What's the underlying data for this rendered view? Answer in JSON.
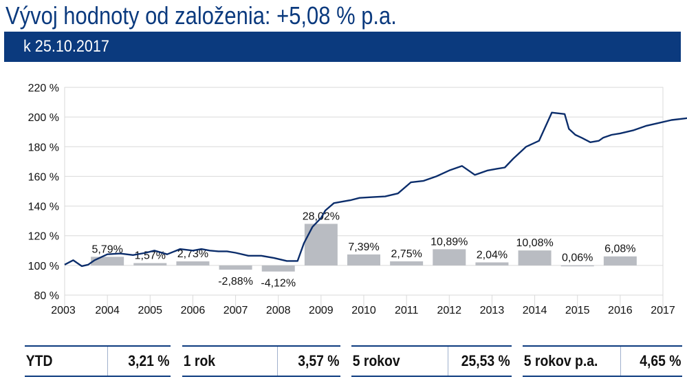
{
  "title": "Vývoj hodnoty od založenia: +5,08 % p.a.",
  "date_label": "k 25.10.2017",
  "colors": {
    "brand": "#0b3a7e",
    "bar": "#b9bcc2",
    "grid": "#d9d9d9",
    "line": "#0b2d6b"
  },
  "chart_data": [
    {
      "type": "line",
      "title": "",
      "ylim": [
        80,
        220
      ],
      "yticks": [
        "220 %",
        "200 %",
        "180 %",
        "160 %",
        "140 %",
        "120 %",
        "100 %",
        "80 %"
      ],
      "x_labels": [
        "2003",
        "2004",
        "2005",
        "2006",
        "2007",
        "2008",
        "2009",
        "2010",
        "2011",
        "2012",
        "2013",
        "2014",
        "2015",
        "2016",
        "2017"
      ],
      "grid": true,
      "series": [
        {
          "x": [
            2003.0,
            2003.2,
            2003.4,
            2003.55,
            2003.7,
            2004.0,
            2004.3,
            2004.6,
            2004.9,
            2005.1,
            2005.4,
            2005.7,
            2006.0,
            2006.2,
            2006.4,
            2006.6,
            2006.8,
            2007.0,
            2007.3,
            2007.6,
            2007.9,
            2008.2,
            2008.45,
            2008.6,
            2008.8,
            2009.0,
            2009.1,
            2009.3,
            2009.5,
            2009.7,
            2009.9,
            2010.2,
            2010.5,
            2010.8,
            2011.1,
            2011.4,
            2011.7,
            2012.0,
            2012.3,
            2012.6,
            2012.9,
            2013.1,
            2013.3,
            2013.5,
            2013.8,
            2014.1,
            2014.4,
            2014.7,
            2014.8,
            2014.95,
            2015.1,
            2015.3,
            2015.5,
            2015.6,
            2015.8,
            2016.0,
            2016.3,
            2016.6,
            2016.9,
            2017.2,
            2017.5,
            2017.81
          ],
          "y": [
            100.5,
            103.5,
            99.5,
            100.5,
            103.5,
            107.5,
            108,
            107,
            108.5,
            110,
            107.5,
            111,
            110,
            111,
            110,
            109.5,
            109.5,
            108.5,
            106.5,
            106.5,
            105,
            103,
            103,
            115,
            126,
            132,
            137,
            142,
            143,
            144,
            145.5,
            146,
            146.5,
            148.5,
            156,
            157,
            160,
            164,
            167,
            161,
            164,
            165,
            166,
            172,
            180,
            184,
            203,
            202,
            192,
            188,
            186,
            183,
            184,
            186,
            188,
            189,
            191,
            194,
            196,
            198,
            199,
            200
          ]
        },
        {
          "type": "bar",
          "categories": [
            "2004",
            "2005",
            "2006",
            "2007",
            "2008",
            "2009",
            "2010",
            "2011",
            "2012",
            "2013",
            "2014",
            "2015",
            "2016"
          ],
          "values": [
            5.79,
            1.57,
            2.73,
            -2.88,
            -4.12,
            28.02,
            7.39,
            2.75,
            10.89,
            2.04,
            10.08,
            0.06,
            6.08
          ],
          "labels": [
            "5,79%",
            "1,57%",
            "2,73%",
            "-2,88%",
            "-4,12%",
            "28,02%",
            "7,39%",
            "2,75%",
            "10,89%",
            "2,04%",
            "10,08%",
            "0,06%",
            "6,08%"
          ]
        }
      ]
    }
  ],
  "stats": [
    {
      "label": "YTD",
      "value": "3,21 %"
    },
    {
      "label": "1 rok",
      "value": "3,57 %"
    },
    {
      "label": "5 rokov",
      "value": "25,53 %"
    },
    {
      "label": "5 rokov p.a.",
      "value": "4,65 %"
    }
  ]
}
